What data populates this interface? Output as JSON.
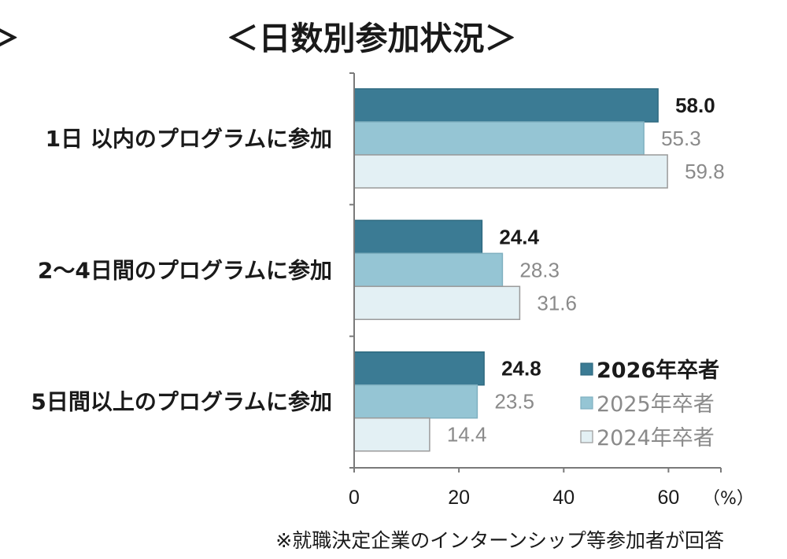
{
  "page": {
    "fragment": "＞"
  },
  "chart_data": {
    "type": "bar",
    "orientation": "horizontal",
    "title": "＜日数別参加状況＞",
    "categories": [
      "1日 以内のプログラムに参加",
      "2～4日間のプログラムに参加",
      "5日間以上のプログラムに参加"
    ],
    "series": [
      {
        "name": "2026年卒者",
        "values": [
          58.0,
          24.4,
          24.8
        ],
        "labels": [
          "58.0",
          "24.4",
          "24.8"
        ],
        "color": "#3b7b94",
        "border_color": "#2f6a80",
        "label_color": "#1a1a1a",
        "label_bold": true
      },
      {
        "name": "2025年卒者",
        "values": [
          55.3,
          28.3,
          23.5
        ],
        "labels": [
          "55.3",
          "28.3",
          "23.5"
        ],
        "color": "#95c5d4",
        "border_color": "#7fb0c0",
        "label_color": "#8a8a8a",
        "label_bold": false
      },
      {
        "name": "2024年卒者",
        "values": [
          59.8,
          31.6,
          14.4
        ],
        "labels": [
          "59.8",
          "31.6",
          "14.4"
        ],
        "color": "#e3f0f4",
        "border_color": "#9a9a9a",
        "label_color": "#8a8a8a",
        "label_bold": false
      }
    ],
    "xlim": [
      0,
      70
    ],
    "xticks": [
      0,
      20,
      40,
      60
    ],
    "unit_label": "（%）",
    "grid": false,
    "legend": {
      "position": "bottom-right"
    },
    "footnote": "※就職決定企業のインターンシップ等参加者が回答",
    "axis_color": "#7a7a7a"
  }
}
